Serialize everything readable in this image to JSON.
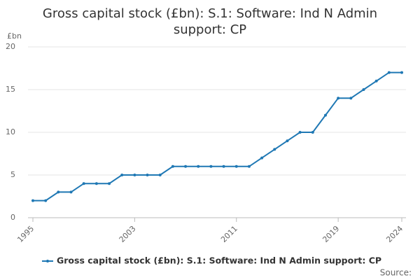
{
  "chart_data": {
    "type": "line",
    "title": "Gross capital stock (£bn): S.1: Software: Ind N Admin support: CP",
    "y_label": "£bn",
    "x": [
      1995,
      1996,
      1997,
      1998,
      1999,
      2000,
      2001,
      2002,
      2003,
      2004,
      2005,
      2006,
      2007,
      2008,
      2009,
      2010,
      2011,
      2012,
      2013,
      2014,
      2015,
      2016,
      2017,
      2018,
      2019,
      2020,
      2021,
      2022,
      2023,
      2024
    ],
    "series": [
      {
        "name": "Gross capital stock (£bn): S.1: Software: Ind N Admin support: CP",
        "color": "#1f78b4",
        "values": [
          2,
          2,
          3,
          3,
          4,
          4,
          4,
          5,
          5,
          5,
          5,
          6,
          6,
          6,
          6,
          6,
          6,
          6,
          7,
          8,
          9,
          10,
          10,
          12,
          14,
          14,
          15,
          16,
          17,
          17
        ]
      }
    ],
    "xlim": [
      1995,
      2024
    ],
    "xticks": [
      1995,
      2003,
      2011,
      2019,
      2024
    ],
    "ylim": [
      0,
      20
    ],
    "yticks": [
      0,
      5,
      10,
      15,
      20
    ],
    "grid": true,
    "source": "Source:"
  }
}
